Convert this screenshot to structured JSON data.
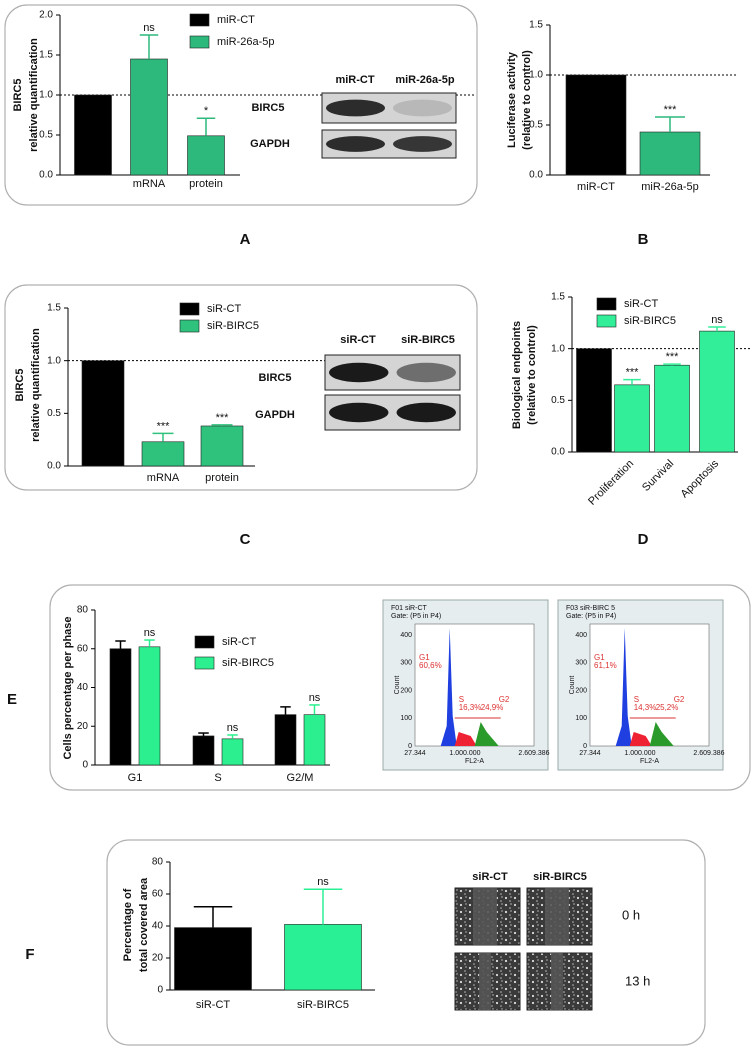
{
  "chart_data": [
    {
      "type": "bar",
      "panel": "A",
      "y_label": [
        "BIRC5",
        "relative quantification"
      ],
      "categories": [
        null,
        "mRNA",
        "protein"
      ],
      "legend": true,
      "series": [
        {
          "name": "miR-CT",
          "color": "#000000",
          "values": [
            1.0,
            null,
            null
          ],
          "errors": [
            null,
            null,
            null
          ],
          "annotations": [
            null,
            null,
            null
          ]
        },
        {
          "name": "miR-26a-5p",
          "color": "#2db97b",
          "values": [
            null,
            1.45,
            0.49
          ],
          "errors": [
            null,
            0.3,
            0.22
          ],
          "annotations": [
            null,
            "ns",
            "*"
          ]
        }
      ],
      "ylim": [
        0,
        2.0
      ],
      "yticks": [
        {
          "value": 0,
          "label": "0.0"
        },
        {
          "value": 0.5,
          "label": "0.5"
        },
        {
          "value": 1.0,
          "label": "1.0"
        },
        {
          "value": 1.5,
          "label": "1.5"
        },
        {
          "value": 2.0,
          "label": "2.0"
        }
      ],
      "reference_line": 1.0,
      "blot": {
        "lanes": [
          "miR-CT",
          "miR-26a-5p"
        ],
        "rows": [
          "BIRC5",
          "GAPDH"
        ]
      }
    },
    {
      "type": "bar",
      "panel": "B",
      "y_label": [
        "Luciferase activity",
        "(relative to control)"
      ],
      "categories": [
        "miR-CT",
        "miR-26a-5p"
      ],
      "values": [
        1.0,
        0.43
      ],
      "errors": [
        null,
        0.15
      ],
      "colors": [
        "#000000",
        "#2db97b"
      ],
      "annotations": [
        null,
        "***"
      ],
      "ylim": [
        0,
        1.5
      ],
      "yticks": [
        {
          "value": 0,
          "label": "0.0"
        },
        {
          "value": 0.5,
          "label": "0.5"
        },
        {
          "value": 1.0,
          "label": "1.0"
        },
        {
          "value": 1.5,
          "label": "1.5"
        }
      ],
      "reference_line": 1.0
    },
    {
      "type": "bar",
      "panel": "C",
      "y_label": [
        "BIRC5",
        "relative quantification"
      ],
      "categories": [
        null,
        "mRNA",
        "protein"
      ],
      "legend": true,
      "series": [
        {
          "name": "siR-CT",
          "color": "#000000",
          "values": [
            1.0,
            null,
            null
          ],
          "errors": [
            null,
            null,
            null
          ],
          "annotations": [
            null,
            null,
            null
          ]
        },
        {
          "name": "siR-BIRC5",
          "color": "#2fc27d",
          "values": [
            null,
            0.23,
            0.38
          ],
          "errors": [
            null,
            0.08,
            0.01
          ],
          "annotations": [
            null,
            "***",
            "***"
          ]
        }
      ],
      "ylim": [
        0,
        1.5
      ],
      "yticks": [
        {
          "value": 0,
          "label": "0.0"
        },
        {
          "value": 0.5,
          "label": "0.5"
        },
        {
          "value": 1.0,
          "label": "1.0"
        },
        {
          "value": 1.5,
          "label": "1.5"
        }
      ],
      "reference_line": 1.0,
      "blot": {
        "lanes": [
          "siR-CT",
          "siR-BIRC5"
        ],
        "rows": [
          "BIRC5",
          "GAPDH"
        ]
      }
    },
    {
      "type": "bar",
      "panel": "D",
      "y_label": [
        "Biological endpoints",
        "(relative to control)"
      ],
      "categories": [
        null,
        "Proliferation",
        "Survival",
        "Apoptosis"
      ],
      "legend": true,
      "series": [
        {
          "name": "siR-CT",
          "color": "#000000",
          "values": [
            1.0,
            null,
            null,
            null
          ],
          "errors": [
            null,
            null,
            null,
            null
          ],
          "annotations": [
            null,
            null,
            null,
            null
          ]
        },
        {
          "name": "siR-BIRC5",
          "color": "#33ee99",
          "values": [
            null,
            0.65,
            0.84,
            1.17
          ],
          "errors": [
            null,
            0.05,
            0.01,
            0.04
          ],
          "annotations": [
            null,
            "***",
            "***",
            "ns"
          ]
        }
      ],
      "ylim": [
        0,
        1.5
      ],
      "yticks": [
        {
          "value": 0,
          "label": "0.0"
        },
        {
          "value": 0.5,
          "label": "0.5"
        },
        {
          "value": 1.0,
          "label": "1.0"
        },
        {
          "value": 1.5,
          "label": "1.5"
        }
      ],
      "reference_line": 1.0
    },
    {
      "type": "bar",
      "panel": "E",
      "y_label": [
        "Cells percentage per phase"
      ],
      "categories": [
        "G1",
        "S",
        "G2/M"
      ],
      "legend": true,
      "series": [
        {
          "name": "siR-CT",
          "color": "#000000",
          "values": [
            60,
            15,
            26
          ],
          "errors": [
            4,
            1.5,
            4
          ],
          "annotations": [
            null,
            null,
            null
          ]
        },
        {
          "name": "siR-BIRC5",
          "color": "#2cf08f",
          "values": [
            61,
            13.5,
            26
          ],
          "errors": [
            3.5,
            2,
            5
          ],
          "annotations": [
            "ns",
            "ns",
            "ns"
          ]
        }
      ],
      "ylim": [
        0,
        80
      ],
      "yticks": [
        0,
        20,
        40,
        60,
        80
      ],
      "insets": [
        {
          "title": "F01 siR-CT",
          "gate": "Gate: (P5 in P4)",
          "labels": [
            "G1",
            "60,6%",
            "S",
            "16,3%",
            "G2",
            "24,9%"
          ],
          "x_label": "FL2-A",
          "y_label": "Count",
          "x_ticks": [
            "27.344",
            "1.000.000",
            "2.609.386"
          ],
          "y_ticks": [
            "0",
            "100",
            "200",
            "300",
            "400"
          ]
        },
        {
          "title": "F03 siR-BIRC 5",
          "gate": "Gate: (P5 in P4)",
          "labels": [
            "G1",
            "61,1%",
            "S",
            "14,3%",
            "G2",
            "25,2%"
          ],
          "x_label": "FL2-A",
          "y_label": "Count",
          "x_ticks": [
            "27.344",
            "1.000.000",
            "2.609.386"
          ],
          "y_ticks": [
            "0",
            "100",
            "200",
            "300",
            "400"
          ]
        }
      ]
    },
    {
      "type": "bar",
      "panel": "F",
      "y_label": [
        "Percentage of",
        "total covered area"
      ],
      "categories": [
        "siR-CT",
        "siR-BIRC5"
      ],
      "values": [
        39,
        41
      ],
      "errors": [
        13,
        22
      ],
      "colors": [
        "#000000",
        "#2af095"
      ],
      "annotations": [
        null,
        "ns"
      ],
      "ylim": [
        0,
        80
      ],
      "yticks": [
        0,
        20,
        40,
        60,
        80
      ],
      "images": {
        "columns": [
          "siR-CT",
          "siR-BIRC5"
        ],
        "rows": [
          "0 h",
          "13 h"
        ]
      }
    }
  ]
}
